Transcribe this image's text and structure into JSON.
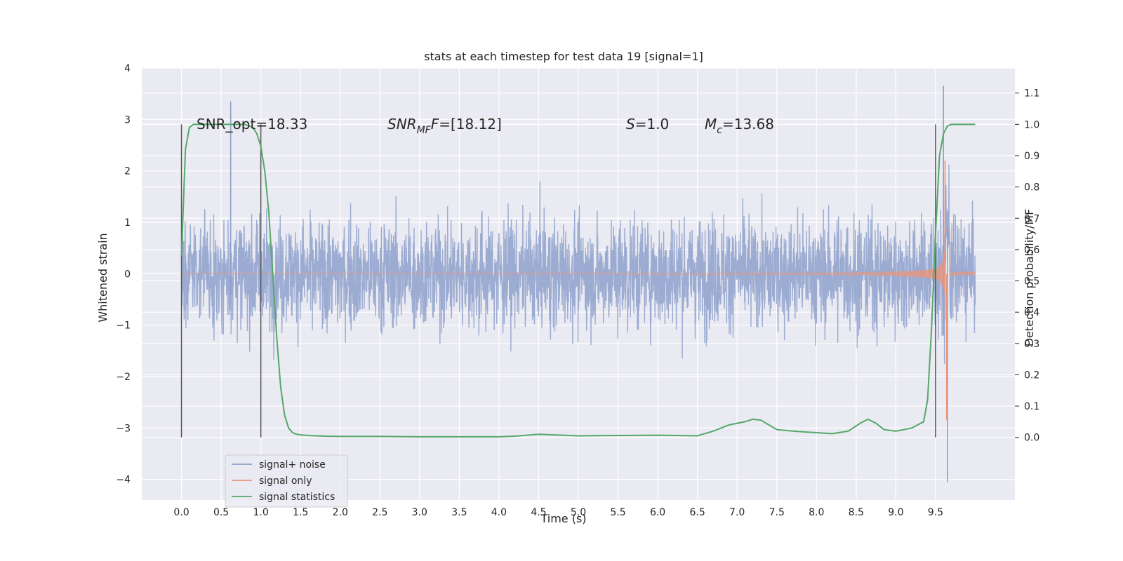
{
  "chart_data": {
    "type": "line",
    "title": "stats at each timestep for test data 19 [signal=1]",
    "xlabel": "Time (s)",
    "ylabel": "Whitened strain",
    "y2label": "Detection probability/MF",
    "xlim": [
      -0.5,
      10.5
    ],
    "ylim": [
      -4.4,
      4.0
    ],
    "y2lim": [
      -0.2,
      1.18
    ],
    "x_ticks": [
      0.0,
      0.5,
      1.0,
      1.5,
      2.0,
      2.5,
      3.0,
      3.5,
      4.0,
      4.5,
      5.0,
      5.5,
      6.0,
      6.5,
      7.0,
      7.5,
      8.0,
      8.5,
      9.0,
      9.5
    ],
    "x_tick_labels": [
      "0.0",
      "0.5",
      "1.0",
      "1.5",
      "2.0",
      "2.5",
      "3.0",
      "3.5",
      "4.0",
      "4.5",
      "5.0",
      "5.5",
      "6.0",
      "6.5",
      "7.0",
      "7.5",
      "8.0",
      "8.5",
      "9.0",
      "9.5"
    ],
    "y_ticks": [
      -4,
      -3,
      -2,
      -1,
      0,
      1,
      2,
      3,
      4
    ],
    "y_tick_labels": [
      "−4",
      "−3",
      "−2",
      "−1",
      "0",
      "1",
      "2",
      "3",
      "4"
    ],
    "y2_ticks": [
      0.0,
      0.1,
      0.2,
      0.3,
      0.4,
      0.5,
      0.6,
      0.7,
      0.8,
      0.9,
      1.0,
      1.1
    ],
    "y2_tick_labels": [
      "0.0",
      "0.1",
      "0.2",
      "0.3",
      "0.4",
      "0.5",
      "0.6",
      "0.7",
      "0.8",
      "0.9",
      "1.0",
      "1.1"
    ],
    "grid": true,
    "legend_position": "bottom-left",
    "background": "#eaeaf2",
    "series": [
      {
        "name": "signal+ noise",
        "color": "#8da0cb",
        "axis": "left",
        "x_range": [
          0.0,
          10.0
        ],
        "amplitude_typical": 1.6,
        "amplitude_min": -4.05,
        "amplitude_max": 3.65
      },
      {
        "name": "signal only",
        "color": "#e9967a",
        "axis": "left",
        "x_range": [
          0.0,
          10.0
        ],
        "merger_time": 9.63,
        "peak_max": 2.2,
        "peak_min": -2.85
      },
      {
        "name": "signal statistics",
        "color": "#55a868",
        "axis": "right",
        "x": [
          0.0,
          0.05,
          0.1,
          0.15,
          0.2,
          0.3,
          0.5,
          0.7,
          0.8,
          0.9,
          0.95,
          1.0,
          1.05,
          1.1,
          1.15,
          1.2,
          1.25,
          1.3,
          1.35,
          1.4,
          1.45,
          1.5,
          1.6,
          1.8,
          2.0,
          2.5,
          3.0,
          3.5,
          4.0,
          4.2,
          4.5,
          5.0,
          5.5,
          6.0,
          6.5,
          6.7,
          6.9,
          7.1,
          7.2,
          7.3,
          7.4,
          7.5,
          7.7,
          8.0,
          8.2,
          8.4,
          8.55,
          8.65,
          8.75,
          8.85,
          9.0,
          9.2,
          9.35,
          9.4,
          9.45,
          9.5,
          9.55,
          9.6,
          9.65,
          9.7,
          9.8,
          9.9,
          10.0
        ],
        "y": [
          0.58,
          0.92,
          0.99,
          1.0,
          1.0,
          1.0,
          1.0,
          1.0,
          1.0,
          0.99,
          0.97,
          0.93,
          0.85,
          0.72,
          0.52,
          0.32,
          0.16,
          0.07,
          0.03,
          0.015,
          0.01,
          0.008,
          0.006,
          0.004,
          0.003,
          0.003,
          0.002,
          0.002,
          0.002,
          0.004,
          0.01,
          0.005,
          0.006,
          0.007,
          0.005,
          0.02,
          0.04,
          0.05,
          0.058,
          0.055,
          0.04,
          0.025,
          0.02,
          0.015,
          0.012,
          0.02,
          0.045,
          0.058,
          0.045,
          0.025,
          0.02,
          0.03,
          0.05,
          0.12,
          0.35,
          0.65,
          0.9,
          0.97,
          0.995,
          1.0,
          1.0,
          1.0,
          1.0
        ]
      }
    ],
    "vertical_markers": [
      0.0,
      1.0,
      9.5
    ],
    "annotations": {
      "snr_opt": "SNR_opt=18.33",
      "snr_mf_var": "SNR",
      "snr_mf_sub": "MF",
      "snr_mf_value": "=[18.12]",
      "s_var": "S",
      "s_value": "=1.0",
      "mc_var": "M",
      "mc_sub": "c",
      "mc_value": "=13.68"
    }
  }
}
